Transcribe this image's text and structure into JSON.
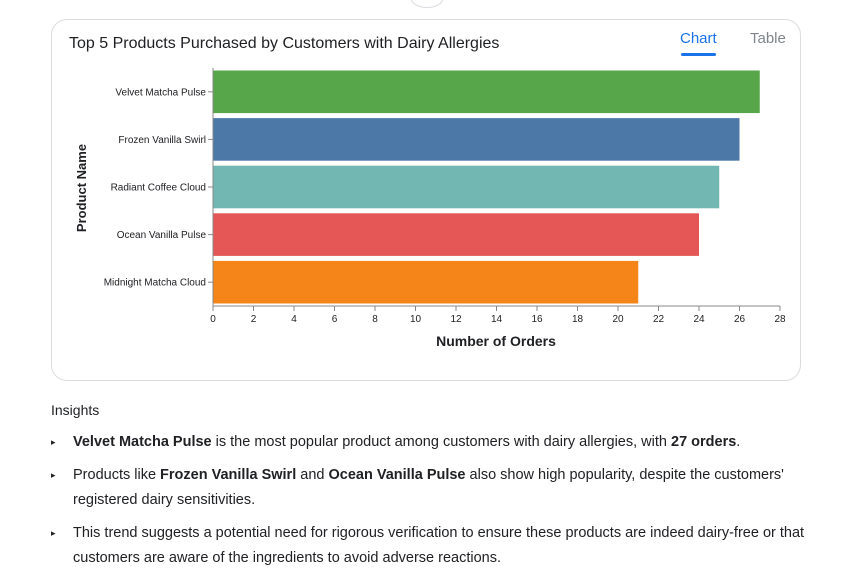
{
  "card": {
    "title": "Top 5 Products Purchased by Customers with Dairy Allergies",
    "tabs": [
      {
        "label": "Chart",
        "active": true
      },
      {
        "label": "Table",
        "active": false
      }
    ]
  },
  "chart_data": {
    "type": "bar",
    "orientation": "horizontal",
    "title": "Top 5 Products Purchased by Customers with Dairy Allergies",
    "xlabel": "Number of Orders",
    "ylabel": "Product Name",
    "xlim": [
      0,
      28
    ],
    "xticks": [
      0,
      2,
      4,
      6,
      8,
      10,
      12,
      14,
      16,
      18,
      20,
      22,
      24,
      26,
      28
    ],
    "categories": [
      "Velvet Matcha Pulse",
      "Frozen Vanilla Swirl",
      "Radiant Coffee Cloud",
      "Ocean Vanilla Pulse",
      "Midnight Matcha Cloud"
    ],
    "values": [
      27,
      26,
      25,
      24,
      21
    ],
    "colors": [
      "#57a64a",
      "#4c78a8",
      "#72b7b2",
      "#e45756",
      "#f58518"
    ],
    "grid": false
  },
  "insights": {
    "heading": "Insights",
    "items": [
      [
        {
          "text": "Velvet Matcha Pulse",
          "bold": true
        },
        {
          "text": " is the most popular product among customers with dairy allergies, with ",
          "bold": false
        },
        {
          "text": "27 orders",
          "bold": true
        },
        {
          "text": ".",
          "bold": false
        }
      ],
      [
        {
          "text": "Products like ",
          "bold": false
        },
        {
          "text": "Frozen Vanilla Swirl",
          "bold": true
        },
        {
          "text": " and ",
          "bold": false
        },
        {
          "text": "Ocean Vanilla Pulse",
          "bold": true
        },
        {
          "text": " also show high popularity, despite the customers' registered dairy sensitivities.",
          "bold": false
        }
      ],
      [
        {
          "text": "This trend suggests a potential need for rigorous verification to ensure these products are indeed dairy-free or that customers are aware of the ingredients to avoid adverse reactions.",
          "bold": false
        }
      ]
    ]
  }
}
